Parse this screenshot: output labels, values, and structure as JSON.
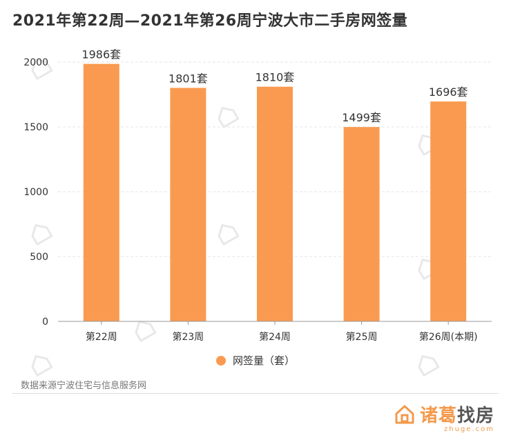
{
  "title": "2021年第22周—2021年第26周宁波大市二手房网签量",
  "chart_data": {
    "type": "bar",
    "categories": [
      "第22周",
      "第23周",
      "第24周",
      "第25周",
      "第26周(本期)"
    ],
    "series": [
      {
        "name": "网签量（套）",
        "values": [
          1986,
          1801,
          1810,
          1499,
          1696
        ],
        "labels": [
          "1986套",
          "1801套",
          "1810套",
          "1499套",
          "1696套"
        ]
      }
    ],
    "yticks": [
      "0",
      "500",
      "1000",
      "1500",
      "2000"
    ],
    "ylim": [
      0,
      2000
    ],
    "grid": true,
    "legend": "bottom",
    "colors": {
      "bar": "#fa9a50"
    }
  },
  "source": "数据来源宁波住宅与信息服务网",
  "brand": {
    "name_part1": "诸葛",
    "name_part2": "找房",
    "domain": "zhuge.com",
    "color_part1": "#f39a4c",
    "color_part2": "#555555"
  }
}
